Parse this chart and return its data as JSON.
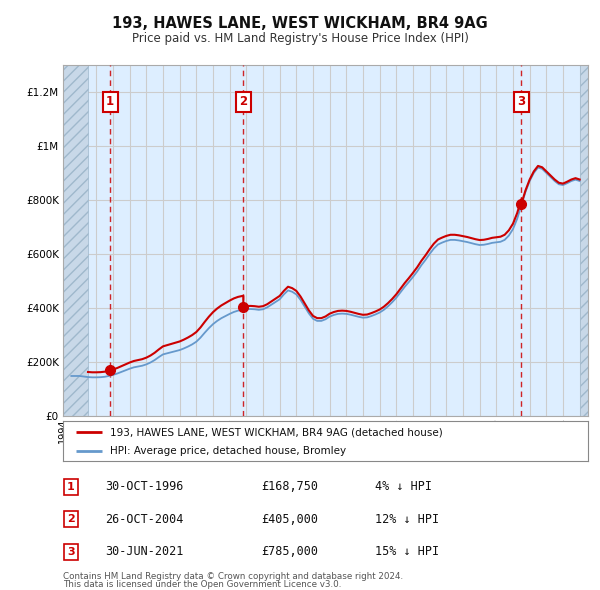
{
  "title": "193, HAWES LANE, WEST WICKHAM, BR4 9AG",
  "subtitle": "Price paid vs. HM Land Registry's House Price Index (HPI)",
  "legend_line1": "193, HAWES LANE, WEST WICKHAM, BR4 9AG (detached house)",
  "legend_line2": "HPI: Average price, detached house, Bromley",
  "footer1": "Contains HM Land Registry data © Crown copyright and database right 2024.",
  "footer2": "This data is licensed under the Open Government Licence v3.0.",
  "sales": [
    {
      "num": 1,
      "date": "30-OCT-1996",
      "price": 168750,
      "year": 1996.83,
      "pct": "4%"
    },
    {
      "num": 2,
      "date": "26-OCT-2004",
      "price": 405000,
      "year": 2004.82,
      "pct": "12%"
    },
    {
      "num": 3,
      "date": "30-JUN-2021",
      "price": 785000,
      "year": 2021.5,
      "pct": "15%"
    }
  ],
  "xmin": 1994.0,
  "xmax": 2025.5,
  "ymin": 0,
  "ymax": 1300000,
  "hatch_end": 1995.5,
  "red_color": "#cc0000",
  "blue_color": "#6699cc",
  "background_color": "#ddeeff",
  "grid_color": "#cccccc",
  "hpi_data_x": [
    1994.5,
    1995.0,
    1995.25,
    1995.5,
    1995.75,
    1996.0,
    1996.25,
    1996.5,
    1996.75,
    1997.0,
    1997.25,
    1997.5,
    1997.75,
    1998.0,
    1998.25,
    1998.5,
    1998.75,
    1999.0,
    1999.25,
    1999.5,
    1999.75,
    2000.0,
    2000.25,
    2000.5,
    2000.75,
    2001.0,
    2001.25,
    2001.5,
    2001.75,
    2002.0,
    2002.25,
    2002.5,
    2002.75,
    2003.0,
    2003.25,
    2003.5,
    2003.75,
    2004.0,
    2004.25,
    2004.5,
    2004.75,
    2005.0,
    2005.25,
    2005.5,
    2005.75,
    2006.0,
    2006.25,
    2006.5,
    2006.75,
    2007.0,
    2007.25,
    2007.5,
    2007.75,
    2008.0,
    2008.25,
    2008.5,
    2008.75,
    2009.0,
    2009.25,
    2009.5,
    2009.75,
    2010.0,
    2010.25,
    2010.5,
    2010.75,
    2011.0,
    2011.25,
    2011.5,
    2011.75,
    2012.0,
    2012.25,
    2012.5,
    2012.75,
    2013.0,
    2013.25,
    2013.5,
    2013.75,
    2014.0,
    2014.25,
    2014.5,
    2014.75,
    2015.0,
    2015.25,
    2015.5,
    2015.75,
    2016.0,
    2016.25,
    2016.5,
    2016.75,
    2017.0,
    2017.25,
    2017.5,
    2017.75,
    2018.0,
    2018.25,
    2018.5,
    2018.75,
    2019.0,
    2019.25,
    2019.5,
    2019.75,
    2020.0,
    2020.25,
    2020.5,
    2020.75,
    2021.0,
    2021.25,
    2021.5,
    2021.75,
    2022.0,
    2022.25,
    2022.5,
    2022.75,
    2023.0,
    2023.25,
    2023.5,
    2023.75,
    2024.0,
    2024.25,
    2024.5,
    2024.75,
    2025.0
  ],
  "hpi_data_y": [
    148000,
    148000,
    146000,
    144000,
    143000,
    143000,
    143500,
    145000,
    148000,
    152000,
    157000,
    163000,
    169000,
    175000,
    180000,
    183000,
    186000,
    191000,
    198000,
    207000,
    218000,
    228000,
    232000,
    236000,
    240000,
    244000,
    250000,
    257000,
    265000,
    275000,
    290000,
    308000,
    325000,
    340000,
    352000,
    362000,
    370000,
    378000,
    385000,
    390000,
    393000,
    395000,
    396000,
    395000,
    393000,
    395000,
    402000,
    412000,
    422000,
    432000,
    450000,
    465000,
    460000,
    450000,
    430000,
    405000,
    380000,
    360000,
    352000,
    352000,
    358000,
    368000,
    374000,
    378000,
    379000,
    378000,
    375000,
    371000,
    367000,
    364000,
    365000,
    370000,
    376000,
    383000,
    393000,
    406000,
    421000,
    438000,
    458000,
    478000,
    496000,
    515000,
    535000,
    558000,
    578000,
    600000,
    620000,
    635000,
    642000,
    648000,
    652000,
    652000,
    650000,
    647000,
    644000,
    640000,
    636000,
    633000,
    634000,
    637000,
    641000,
    643000,
    645000,
    652000,
    668000,
    692000,
    730000,
    780000,
    830000,
    870000,
    900000,
    920000,
    915000,
    900000,
    885000,
    870000,
    858000,
    855000,
    862000,
    870000,
    875000,
    870000
  ],
  "yticks": [
    0,
    200000,
    400000,
    600000,
    800000,
    1000000,
    1200000
  ],
  "ytick_labels": [
    "£0",
    "£200K",
    "£400K",
    "£600K",
    "£800K",
    "£1M",
    "£1.2M"
  ]
}
